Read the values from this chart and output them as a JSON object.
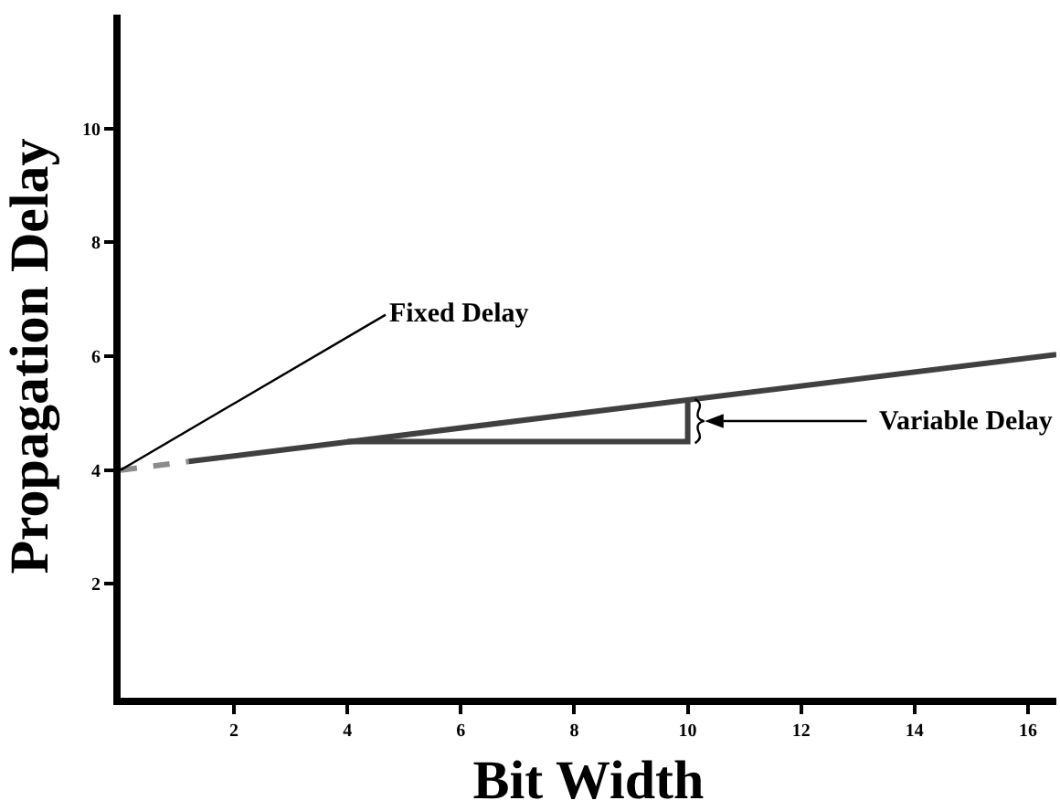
{
  "chart_data": {
    "type": "line",
    "xlabel": "Bit Width",
    "ylabel": "Propagation Delay",
    "xlim": [
      0,
      16.5
    ],
    "xticks": [
      2,
      4,
      6,
      8,
      10,
      12,
      14,
      16
    ],
    "ylim": [
      0,
      12
    ],
    "yticks": [
      2,
      4,
      6,
      8,
      10
    ],
    "series": [
      {
        "color": "#8c8c8c",
        "line_style": "dashed",
        "x": [
          0,
          1.2
        ],
        "values": [
          4,
          4.15
        ]
      },
      {
        "color": "#404040",
        "line_style": "solid",
        "x": [
          1.2,
          16.5
        ],
        "values": [
          4.15,
          6.03
        ]
      },
      {
        "color": "#404040",
        "line_style": "solid",
        "x": [
          4,
          10,
          10
        ],
        "values": [
          4.5,
          4.5,
          5.22
        ]
      }
    ],
    "annotations": [
      {
        "text": "Fixed Delay",
        "x": 0,
        "y": 4
      },
      "Variable Delay"
    ],
    "grid": false,
    "marker": "none"
  }
}
